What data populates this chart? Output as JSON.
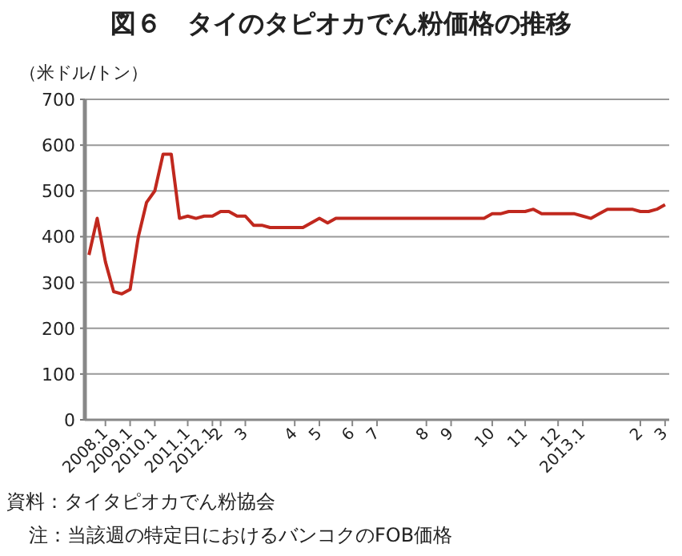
{
  "chart_data": {
    "type": "line",
    "title": "図６　タイのタピオカでん粉価格の推移",
    "ylabel": "（米ドル/トン）",
    "categories": [
      null,
      null,
      "2008.1",
      null,
      null,
      "2009.1",
      null,
      null,
      "2010.1",
      null,
      null,
      null,
      "2011.1",
      null,
      null,
      "2012.1",
      "2",
      null,
      null,
      "3",
      null,
      null,
      null,
      null,
      null,
      "4",
      null,
      null,
      "5",
      null,
      null,
      null,
      "6",
      null,
      null,
      "7",
      null,
      null,
      null,
      null,
      null,
      "8",
      null,
      null,
      "9",
      null,
      null,
      null,
      null,
      "10",
      null,
      null,
      null,
      "11",
      null,
      null,
      null,
      "12",
      null,
      null,
      "2013.1",
      null,
      null,
      null,
      null,
      null,
      null,
      "2",
      null,
      null,
      "3"
    ],
    "series": [
      {
        "color": "#c0281e",
        "values": [
          360,
          440,
          345,
          280,
          275,
          285,
          400,
          475,
          500,
          580,
          580,
          440,
          445,
          440,
          445,
          445,
          455,
          455,
          445,
          445,
          425,
          425,
          420,
          420,
          420,
          420,
          420,
          430,
          440,
          430,
          440,
          440,
          440,
          440,
          440,
          440,
          440,
          440,
          440,
          440,
          440,
          440,
          440,
          440,
          440,
          440,
          440,
          440,
          440,
          450,
          450,
          455,
          455,
          455,
          460,
          450,
          450,
          450,
          450,
          450,
          445,
          440,
          450,
          460,
          460,
          460,
          460,
          455,
          455,
          460,
          470
        ]
      }
    ],
    "ylim": [
      0,
      700
    ],
    "yticks": [
      0,
      100,
      200,
      300,
      400,
      500,
      600,
      700
    ],
    "grid": "y",
    "annotations": [
      "資料：タイタピオカでん粉協会",
      "注：当該週の特定日におけるバンコクのFOB価格"
    ]
  }
}
